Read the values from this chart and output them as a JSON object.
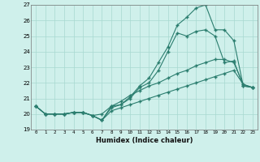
{
  "xlabel": "Humidex (Indice chaleur)",
  "x": [
    0,
    1,
    2,
    3,
    4,
    5,
    6,
    7,
    8,
    9,
    10,
    11,
    12,
    13,
    14,
    15,
    16,
    17,
    18,
    19,
    20,
    21,
    22,
    23
  ],
  "line1": [
    20.5,
    20.0,
    20.0,
    20.0,
    20.1,
    20.1,
    19.9,
    19.6,
    20.5,
    20.6,
    21.1,
    21.8,
    22.3,
    23.3,
    24.3,
    25.7,
    26.2,
    26.8,
    27.0,
    25.4,
    25.4,
    24.7,
    21.8,
    21.7
  ],
  "line2": [
    20.5,
    20.0,
    20.0,
    20.0,
    20.1,
    20.1,
    19.9,
    19.6,
    20.4,
    20.6,
    21.0,
    21.7,
    22.0,
    22.8,
    24.0,
    25.2,
    25.0,
    25.3,
    25.4,
    25.0,
    23.3,
    23.4,
    21.8,
    21.7
  ],
  "line3": [
    20.5,
    20.0,
    20.0,
    20.0,
    20.1,
    20.1,
    19.9,
    20.0,
    20.5,
    20.8,
    21.2,
    21.5,
    21.8,
    22.0,
    22.3,
    22.6,
    22.8,
    23.1,
    23.3,
    23.5,
    23.5,
    23.3,
    21.9,
    21.7
  ],
  "line4": [
    20.5,
    20.0,
    20.0,
    20.0,
    20.1,
    20.1,
    19.9,
    19.6,
    20.2,
    20.4,
    20.6,
    20.8,
    21.0,
    21.2,
    21.4,
    21.6,
    21.8,
    22.0,
    22.2,
    22.4,
    22.6,
    22.8,
    21.9,
    21.7
  ],
  "line_color": "#2a7d6e",
  "bg_color": "#cff0eb",
  "grid_color": "#a8d8d0",
  "ylim": [
    19,
    27
  ],
  "xlim": [
    -0.5,
    23.5
  ],
  "yticks": [
    19,
    20,
    21,
    22,
    23,
    24,
    25,
    26,
    27
  ],
  "xticks": [
    0,
    1,
    2,
    3,
    4,
    5,
    6,
    7,
    8,
    9,
    10,
    11,
    12,
    13,
    14,
    15,
    16,
    17,
    18,
    19,
    20,
    21,
    22,
    23
  ]
}
